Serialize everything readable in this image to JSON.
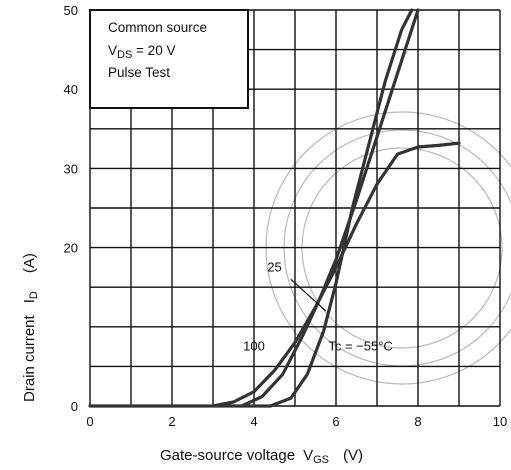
{
  "chart_data": {
    "type": "line",
    "xlabel": "Gate-source voltage",
    "xlabel_symbol": "V",
    "xlabel_sub": "GS",
    "xlabel_unit": "(V)",
    "ylabel": "Drain current",
    "ylabel_symbol": "I",
    "ylabel_sub": "D",
    "ylabel_unit": "(A)",
    "xlim": [
      0,
      10
    ],
    "ylim": [
      0,
      50
    ],
    "grid": true,
    "x_ticks": [
      "0",
      "2",
      "4",
      "6",
      "8",
      "10"
    ],
    "y_ticks": [
      {
        "value": 0,
        "label": "0"
      },
      {
        "value": 20,
        "label": "20"
      },
      {
        "value": 30,
        "label": "30"
      },
      {
        "value": 40,
        "label": "40"
      },
      {
        "value": 50,
        "label": "50"
      }
    ],
    "legend_box": {
      "placement": "top-left",
      "line1": "Common source",
      "line2_prefix": "V",
      "line2_sub": "DS",
      "line2_suffix": " = 20 V",
      "line3": "Pulse Test"
    },
    "series": [
      {
        "name": "100",
        "x": [
          3.0,
          3.5,
          4.0,
          4.5,
          5.0,
          5.5,
          6.0,
          6.5,
          7.0,
          7.5,
          8.0,
          8.5,
          9.0
        ],
        "y": [
          0,
          0.5,
          1.8,
          4.5,
          8.0,
          12.5,
          17.5,
          23.0,
          28.0,
          31.8,
          32.7,
          32.9,
          33.2
        ]
      },
      {
        "name": "25",
        "x": [
          3.7,
          4.2,
          4.7,
          5.2,
          5.6,
          6.0,
          6.5,
          7.0,
          7.5,
          8.0
        ],
        "y": [
          0,
          1.2,
          4.0,
          9.0,
          13.5,
          18.5,
          26.0,
          34.0,
          42.0,
          50.0
        ]
      },
      {
        "name": "Tc = −55°C",
        "x": [
          4.4,
          4.9,
          5.3,
          5.7,
          6.0,
          6.4,
          6.8,
          7.2,
          7.6,
          7.85
        ],
        "y": [
          0,
          1.0,
          4.0,
          9.5,
          15.5,
          25.0,
          33.0,
          41.0,
          47.5,
          50.0
        ]
      }
    ],
    "annotations": [
      {
        "text": "25",
        "x": 4.5,
        "y": 17.0
      },
      {
        "text": "100",
        "x": 4.0,
        "y": 7.0
      },
      {
        "text": "Tc = −55°C",
        "x": 6.6,
        "y": 7.0
      }
    ],
    "colors": {
      "curve": "#333333",
      "grid": "#111111",
      "watermark": "#b9b9b9"
    }
  }
}
